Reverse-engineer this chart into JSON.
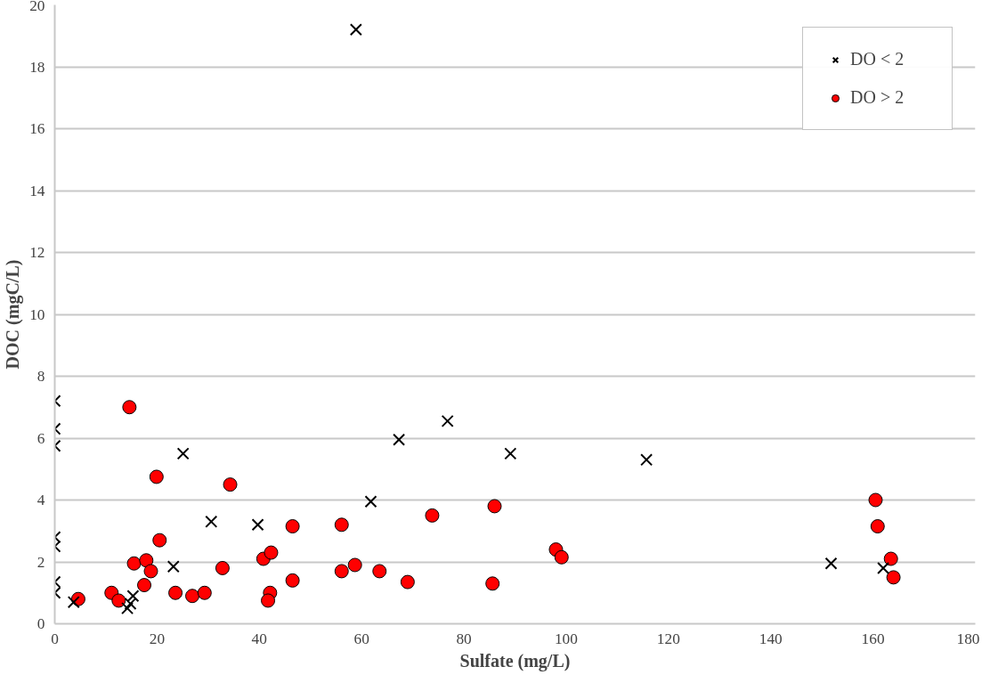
{
  "chart_data": {
    "type": "scatter",
    "xlabel": "Sulfate (mg/L)",
    "ylabel": "DOC (mgC/L)",
    "xlim": [
      0,
      180
    ],
    "xticks": [
      0,
      20,
      40,
      60,
      80,
      100,
      120,
      140,
      160,
      180
    ],
    "ylim": [
      0,
      20
    ],
    "yticks": [
      0,
      2,
      4,
      6,
      8,
      10,
      12,
      14,
      16,
      18,
      20
    ],
    "grid": "y",
    "legend": "top right",
    "series": [
      {
        "name": "DO < 2",
        "color": "#000000",
        "marker": "cross",
        "x": [
          0,
          0,
          0,
          0,
          0,
          0,
          0,
          3.7,
          14.2,
          14.8,
          15.3,
          23.2,
          25.1,
          30.6,
          39.7,
          58.9,
          61.8,
          67.3,
          76.8,
          89.1,
          115.7,
          151.8,
          162
        ],
        "values": [
          7.2,
          6.3,
          5.75,
          2.8,
          2.5,
          1.35,
          1.0,
          0.7,
          0.5,
          0.65,
          0.9,
          1.85,
          5.5,
          3.3,
          3.2,
          19.2,
          3.95,
          5.95,
          6.55,
          5.5,
          5.3,
          1.95,
          1.8
        ]
      },
      {
        "name": "DO > 2",
        "color": "#ff0000",
        "marker": "circle",
        "x": [
          4.6,
          11.1,
          12.5,
          14.6,
          15.5,
          17.9,
          17.5,
          18.8,
          19.9,
          20.5,
          23.6,
          26.9,
          29.3,
          32.8,
          34.3,
          40.8,
          42.3,
          42.1,
          41.7,
          46.5,
          46.5,
          56.1,
          56.1,
          58.7,
          63.5,
          69,
          73.8,
          85.6,
          86,
          98,
          99.1,
          160.5,
          160.9,
          163.5,
          164
        ],
        "values": [
          0.8,
          1.0,
          0.75,
          7.0,
          1.95,
          2.05,
          1.25,
          1.7,
          4.75,
          2.7,
          1.0,
          0.9,
          1.0,
          1.8,
          4.5,
          2.1,
          2.3,
          1.0,
          0.75,
          3.15,
          1.4,
          3.2,
          1.7,
          1.9,
          1.7,
          1.35,
          3.5,
          1.3,
          3.8,
          2.4,
          2.15,
          4.0,
          3.15,
          2.1,
          1.5
        ]
      }
    ]
  }
}
